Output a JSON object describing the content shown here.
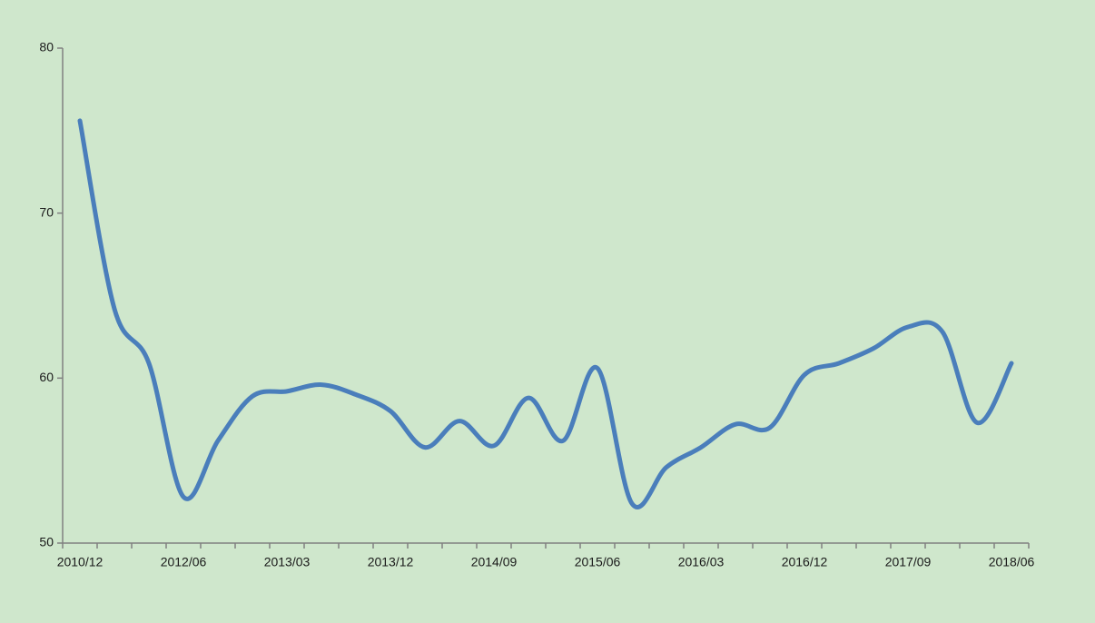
{
  "chart_data": {
    "type": "line",
    "categories": [
      "2010/12",
      null,
      null,
      "2012/06",
      null,
      null,
      "2013/03",
      null,
      null,
      "2013/12",
      null,
      null,
      "2014/09",
      null,
      null,
      "2015/06",
      null,
      null,
      "2016/03",
      null,
      null,
      "2016/12",
      null,
      null,
      "2017/09",
      null,
      null,
      "2018/06"
    ],
    "series": [
      {
        "color": "#4a7ebb",
        "values": [
          75.6,
          64.2,
          60.9,
          52.8,
          56.2,
          58.9,
          59.2,
          59.6,
          59.0,
          58.0,
          55.8,
          57.4,
          55.9,
          58.8,
          56.2,
          60.6,
          52.4,
          54.6,
          55.8,
          57.2,
          57.0,
          60.2,
          60.9,
          61.8,
          63.1,
          62.8,
          57.3,
          60.9
        ]
      }
    ],
    "ylim": [
      50,
      80
    ],
    "yticks": [
      50,
      60,
      70,
      80
    ],
    "smooth": true
  }
}
